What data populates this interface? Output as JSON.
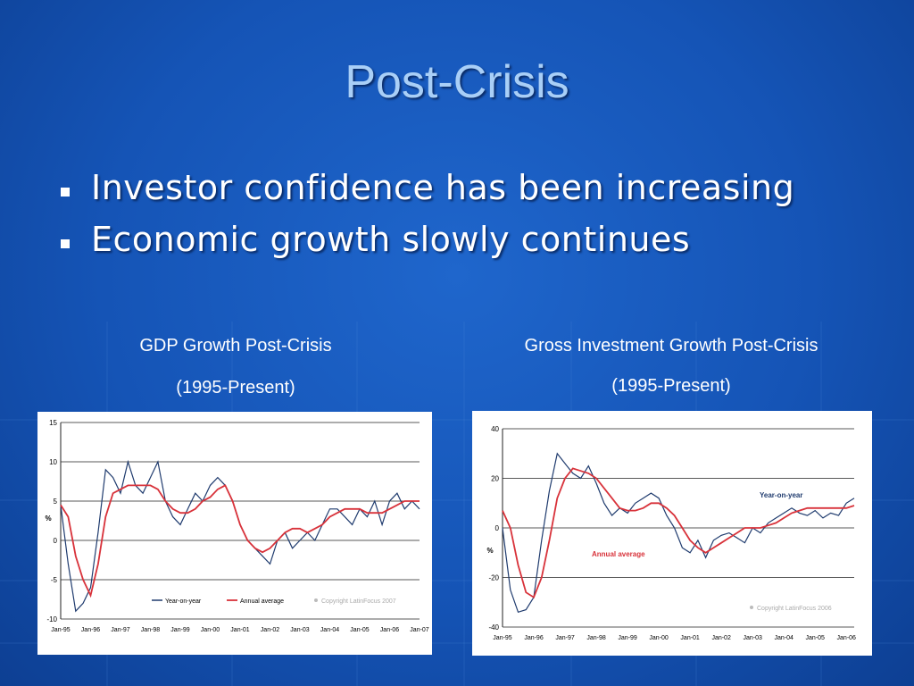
{
  "slide": {
    "title": "Post-Crisis",
    "bullets": [
      "Investor confidence has been increasing",
      "Economic growth slowly continues"
    ]
  },
  "left_chart_caption": {
    "line1": "GDP Growth Post-Crisis",
    "line2": "(1995-Present)"
  },
  "right_chart_caption": {
    "line1": "Gross Investment Growth Post-Crisis",
    "line2": "(1995-Present)"
  },
  "colors": {
    "yoy": "#1f3b6e",
    "annual": "#d8323a",
    "grid": "#000000"
  },
  "chart_data": [
    {
      "type": "line",
      "ylim": [
        -10,
        15
      ],
      "yticks": [
        "15",
        "10",
        "5",
        "0",
        "-5",
        "-10"
      ],
      "ylabel": "%",
      "xticks": [
        "Jan-95",
        "Jan-96",
        "Jan-97",
        "Jan-98",
        "Jan-99",
        "Jan-00",
        "Jan-01",
        "Jan-02",
        "Jan-03",
        "Jan-04",
        "Jan-05",
        "Jan-06",
        "Jan-07"
      ],
      "x": [
        1995.0,
        1995.25,
        1995.5,
        1995.75,
        1996.0,
        1996.25,
        1996.5,
        1996.75,
        1997.0,
        1997.25,
        1997.5,
        1997.75,
        1998.0,
        1998.25,
        1998.5,
        1998.75,
        1999.0,
        1999.25,
        1999.5,
        1999.75,
        2000.0,
        2000.25,
        2000.5,
        2000.75,
        2001.0,
        2001.25,
        2001.5,
        2001.75,
        2002.0,
        2002.25,
        2002.5,
        2002.75,
        2003.0,
        2003.25,
        2003.5,
        2003.75,
        2004.0,
        2004.25,
        2004.5,
        2004.75,
        2005.0,
        2005.25,
        2005.5,
        2005.75,
        2006.0,
        2006.25,
        2006.5,
        2006.75,
        2007.0
      ],
      "series": [
        {
          "name": "Year-on-year",
          "values": [
            4.5,
            -3,
            -9,
            -8,
            -6,
            1,
            9,
            8,
            6,
            10,
            7,
            6,
            8,
            10,
            5,
            3,
            2,
            4,
            6,
            5,
            7,
            8,
            7,
            5,
            2,
            0,
            -1,
            -2,
            -3,
            0,
            1,
            -1,
            0,
            1,
            0,
            2,
            4,
            4,
            3,
            2,
            4,
            3,
            5,
            2,
            5,
            6,
            4,
            5,
            4
          ]
        },
        {
          "name": "Annual average",
          "values": [
            4.5,
            3,
            -2,
            -5,
            -7,
            -3,
            3,
            6,
            6.5,
            7,
            7,
            7,
            7,
            6.5,
            5,
            4,
            3.5,
            3.5,
            4,
            5,
            5.5,
            6.5,
            7,
            5,
            2,
            0,
            -1,
            -1.5,
            -1,
            0,
            1,
            1.5,
            1.5,
            1,
            1.5,
            2,
            3,
            3.5,
            4,
            4,
            4,
            3.5,
            3.5,
            3.5,
            4,
            4.5,
            5,
            5,
            5
          ]
        }
      ],
      "legend": {
        "position": "bottom",
        "entries": [
          "Year-on-year",
          "Annual average"
        ]
      },
      "annotations": [
        "Copyright LatinFocus 2007"
      ]
    },
    {
      "type": "line",
      "ylim": [
        -40,
        40
      ],
      "yticks": [
        "40",
        "20",
        "0",
        "-20",
        "-40"
      ],
      "ylabel": "%",
      "xticks": [
        "Jan-95",
        "Jan-96",
        "Jan-97",
        "Jan-98",
        "Jan-99",
        "Jan-00",
        "Jan-01",
        "Jan-02",
        "Jan-03",
        "Jan-04",
        "Jan-05",
        "Jan-06"
      ],
      "x": [
        1995.0,
        1995.25,
        1995.5,
        1995.75,
        1996.0,
        1996.25,
        1996.5,
        1996.75,
        1997.0,
        1997.25,
        1997.5,
        1997.75,
        1998.0,
        1998.25,
        1998.5,
        1998.75,
        1999.0,
        1999.25,
        1999.5,
        1999.75,
        2000.0,
        2000.25,
        2000.5,
        2000.75,
        2001.0,
        2001.25,
        2001.5,
        2001.75,
        2002.0,
        2002.25,
        2002.5,
        2002.75,
        2003.0,
        2003.25,
        2003.5,
        2003.75,
        2004.0,
        2004.25,
        2004.5,
        2004.75,
        2005.0,
        2005.25,
        2005.5,
        2005.75,
        2006.0,
        2006.25
      ],
      "series": [
        {
          "name": "Year-on-year",
          "values": [
            0,
            -25,
            -34,
            -33,
            -28,
            -5,
            15,
            30,
            26,
            22,
            20,
            25,
            18,
            10,
            5,
            8,
            6,
            10,
            12,
            14,
            12,
            5,
            0,
            -8,
            -10,
            -5,
            -12,
            -5,
            -3,
            -2,
            -4,
            -6,
            0,
            -2,
            2,
            4,
            6,
            8,
            6,
            5,
            7,
            4,
            6,
            5,
            10,
            12
          ]
        },
        {
          "name": "Annual average",
          "values": [
            7,
            0,
            -15,
            -26,
            -28,
            -20,
            -5,
            12,
            20,
            24,
            23,
            22,
            20,
            16,
            12,
            8,
            7,
            7,
            8,
            10,
            10,
            8,
            5,
            0,
            -5,
            -8,
            -10,
            -8,
            -6,
            -4,
            -2,
            0,
            0,
            0,
            1,
            2,
            4,
            6,
            7,
            8,
            8,
            8,
            8,
            8,
            8,
            9
          ]
        }
      ],
      "labels": [
        "Year-on-year",
        "Annual average"
      ],
      "annotations": [
        "Copyright LatinFocus 2006"
      ]
    }
  ]
}
